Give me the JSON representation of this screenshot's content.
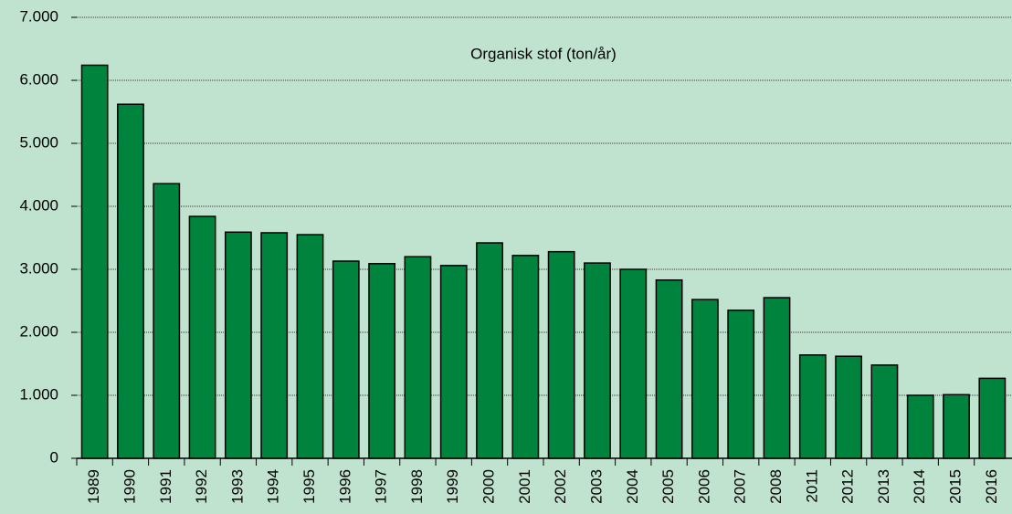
{
  "chart_data": {
    "type": "bar",
    "title": "Organisk stof (ton/år)",
    "categories": [
      "1989",
      "1990",
      "1991",
      "1992",
      "1993",
      "1994",
      "1995",
      "1996",
      "1997",
      "1998",
      "1999",
      "2000",
      "2001",
      "2002",
      "2003",
      "2004",
      "2005",
      "2006",
      "2007",
      "2008",
      "2011",
      "2012",
      "2013",
      "2014",
      "2015",
      "2016"
    ],
    "values": [
      6240,
      5620,
      4360,
      3840,
      3590,
      3580,
      3550,
      3130,
      3090,
      3200,
      3060,
      3420,
      3220,
      3280,
      3100,
      3000,
      2830,
      2520,
      2350,
      2550,
      1640,
      1620,
      1480,
      1000,
      1010,
      1270
    ],
    "color": "#00843d",
    "ylim": [
      0,
      7000
    ],
    "yticks": [
      0,
      {
        "value": 1000,
        "label": "1.000"
      },
      {
        "value": 2000,
        "label": "2.000"
      },
      {
        "value": 3000,
        "label": "3.000"
      },
      {
        "value": 4000,
        "label": "4.000"
      },
      {
        "value": 5000,
        "label": "5.000"
      },
      {
        "value": 6000,
        "label": "6.000"
      },
      {
        "value": 7000,
        "label": "7.000"
      }
    ],
    "grid": true
  }
}
